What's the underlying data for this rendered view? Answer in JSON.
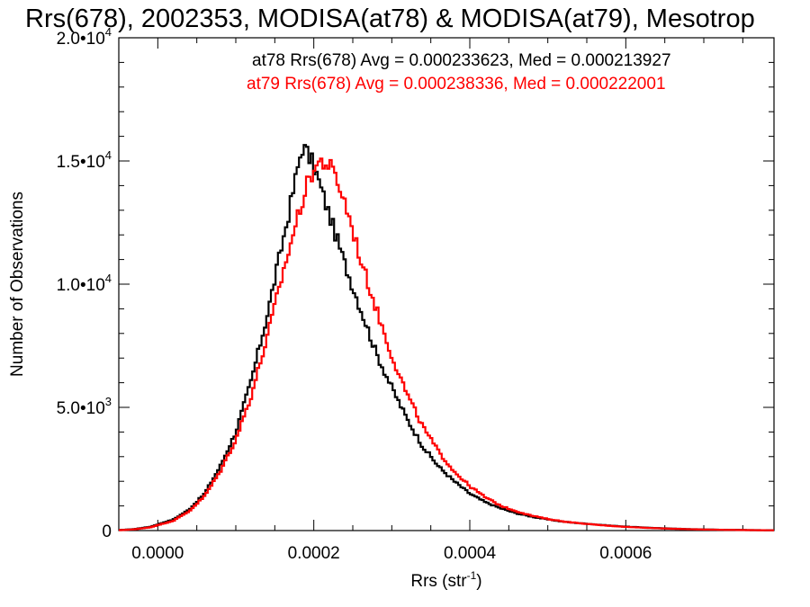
{
  "chart_data": {
    "type": "line",
    "title": "Rrs(678), 2002353, MODISA(at78) & MODISA(at79), Mesotrop",
    "xlabel": "Rrs (str",
    "xlabel_sup": "-1",
    "xlabel_close": ")",
    "ylabel": "Number of Observations",
    "xlim": [
      -5e-05,
      0.00079
    ],
    "ylim": [
      0,
      20000
    ],
    "xticks": [
      {
        "value": 0.0,
        "label": "0.0000"
      },
      {
        "value": 0.0002,
        "label": "0.0002"
      },
      {
        "value": 0.0004,
        "label": "0.0004"
      },
      {
        "value": 0.0006,
        "label": "0.0006"
      }
    ],
    "yticks": [
      {
        "value": 0,
        "base": "0",
        "exp": ""
      },
      {
        "value": 5000,
        "base": "5.0•10",
        "exp": "3"
      },
      {
        "value": 10000,
        "base": "1.0•10",
        "exp": "4"
      },
      {
        "value": 15000,
        "base": "1.5•10",
        "exp": "4"
      },
      {
        "value": 20000,
        "base": "2.0•10",
        "exp": "4"
      }
    ],
    "annotations": [
      {
        "text": "at78 Rrs(678) Avg = 0.000233623, Med = 0.000213927",
        "color": "#000000"
      },
      {
        "text": "at79 Rrs(678) Avg = 0.000238336, Med = 0.000222001",
        "color": "#ff0000"
      }
    ],
    "series": [
      {
        "color": "#000000",
        "points": [
          [
            -5e-05,
            20
          ],
          [
            -3e-05,
            60
          ],
          [
            -1e-05,
            150
          ],
          [
            0.0,
            250
          ],
          [
            2e-05,
            450
          ],
          [
            4e-05,
            850
          ],
          [
            6e-05,
            1500
          ],
          [
            8e-05,
            2600
          ],
          [
            0.0001,
            4000
          ],
          [
            0.00012,
            6100
          ],
          [
            0.00014,
            8700
          ],
          [
            0.00016,
            11700
          ],
          [
            0.00017,
            13200
          ],
          [
            0.00018,
            14800
          ],
          [
            0.000185,
            15600
          ],
          [
            0.00019,
            15400
          ],
          [
            0.0002,
            14800
          ],
          [
            0.00021,
            13800
          ],
          [
            0.00022,
            12800
          ],
          [
            0.00023,
            11800
          ],
          [
            0.00024,
            10800
          ],
          [
            0.00025,
            9900
          ],
          [
            0.00026,
            9000
          ],
          [
            0.00028,
            7200
          ],
          [
            0.0003,
            5800
          ],
          [
            0.00032,
            4500
          ],
          [
            0.00034,
            3400
          ],
          [
            0.00036,
            2600
          ],
          [
            0.00038,
            2000
          ],
          [
            0.0004,
            1500
          ],
          [
            0.00042,
            1150
          ],
          [
            0.00044,
            900
          ],
          [
            0.00046,
            700
          ],
          [
            0.00048,
            560
          ],
          [
            0.0005,
            450
          ],
          [
            0.00052,
            360
          ],
          [
            0.00054,
            300
          ],
          [
            0.00056,
            250
          ],
          [
            0.00058,
            200
          ],
          [
            0.0006,
            160
          ],
          [
            0.00062,
            130
          ],
          [
            0.00064,
            100
          ],
          [
            0.00066,
            80
          ],
          [
            0.00068,
            60
          ],
          [
            0.0007,
            45
          ],
          [
            0.00072,
            35
          ],
          [
            0.00074,
            28
          ],
          [
            0.00076,
            20
          ],
          [
            0.00078,
            15
          ]
        ]
      },
      {
        "color": "#ff0000",
        "points": [
          [
            -5e-05,
            15
          ],
          [
            -3e-05,
            50
          ],
          [
            -1e-05,
            130
          ],
          [
            0.0,
            220
          ],
          [
            2e-05,
            400
          ],
          [
            4e-05,
            780
          ],
          [
            6e-05,
            1400
          ],
          [
            8e-05,
            2400
          ],
          [
            0.0001,
            3700
          ],
          [
            0.00012,
            5500
          ],
          [
            0.00014,
            7800
          ],
          [
            0.00016,
            10400
          ],
          [
            0.00018,
            12800
          ],
          [
            0.00019,
            13900
          ],
          [
            0.0002,
            14700
          ],
          [
            0.00021,
            15000
          ],
          [
            0.00022,
            14800
          ],
          [
            0.00023,
            14200
          ],
          [
            0.00024,
            13300
          ],
          [
            0.00025,
            12200
          ],
          [
            0.00026,
            11000
          ],
          [
            0.00027,
            10000
          ],
          [
            0.00028,
            9000
          ],
          [
            0.0003,
            7100
          ],
          [
            0.00032,
            5500
          ],
          [
            0.00034,
            4200
          ],
          [
            0.00036,
            3200
          ],
          [
            0.00038,
            2400
          ],
          [
            0.0004,
            1800
          ],
          [
            0.00042,
            1350
          ],
          [
            0.00044,
            1000
          ],
          [
            0.00046,
            780
          ],
          [
            0.00048,
            600
          ],
          [
            0.0005,
            470
          ],
          [
            0.00052,
            370
          ],
          [
            0.00054,
            300
          ],
          [
            0.00056,
            240
          ],
          [
            0.00058,
            190
          ],
          [
            0.0006,
            150
          ],
          [
            0.00062,
            120
          ],
          [
            0.00064,
            95
          ],
          [
            0.00066,
            75
          ],
          [
            0.00068,
            55
          ],
          [
            0.0007,
            42
          ],
          [
            0.00072,
            32
          ],
          [
            0.00074,
            25
          ],
          [
            0.00076,
            18
          ],
          [
            0.00078,
            12
          ]
        ]
      }
    ]
  }
}
